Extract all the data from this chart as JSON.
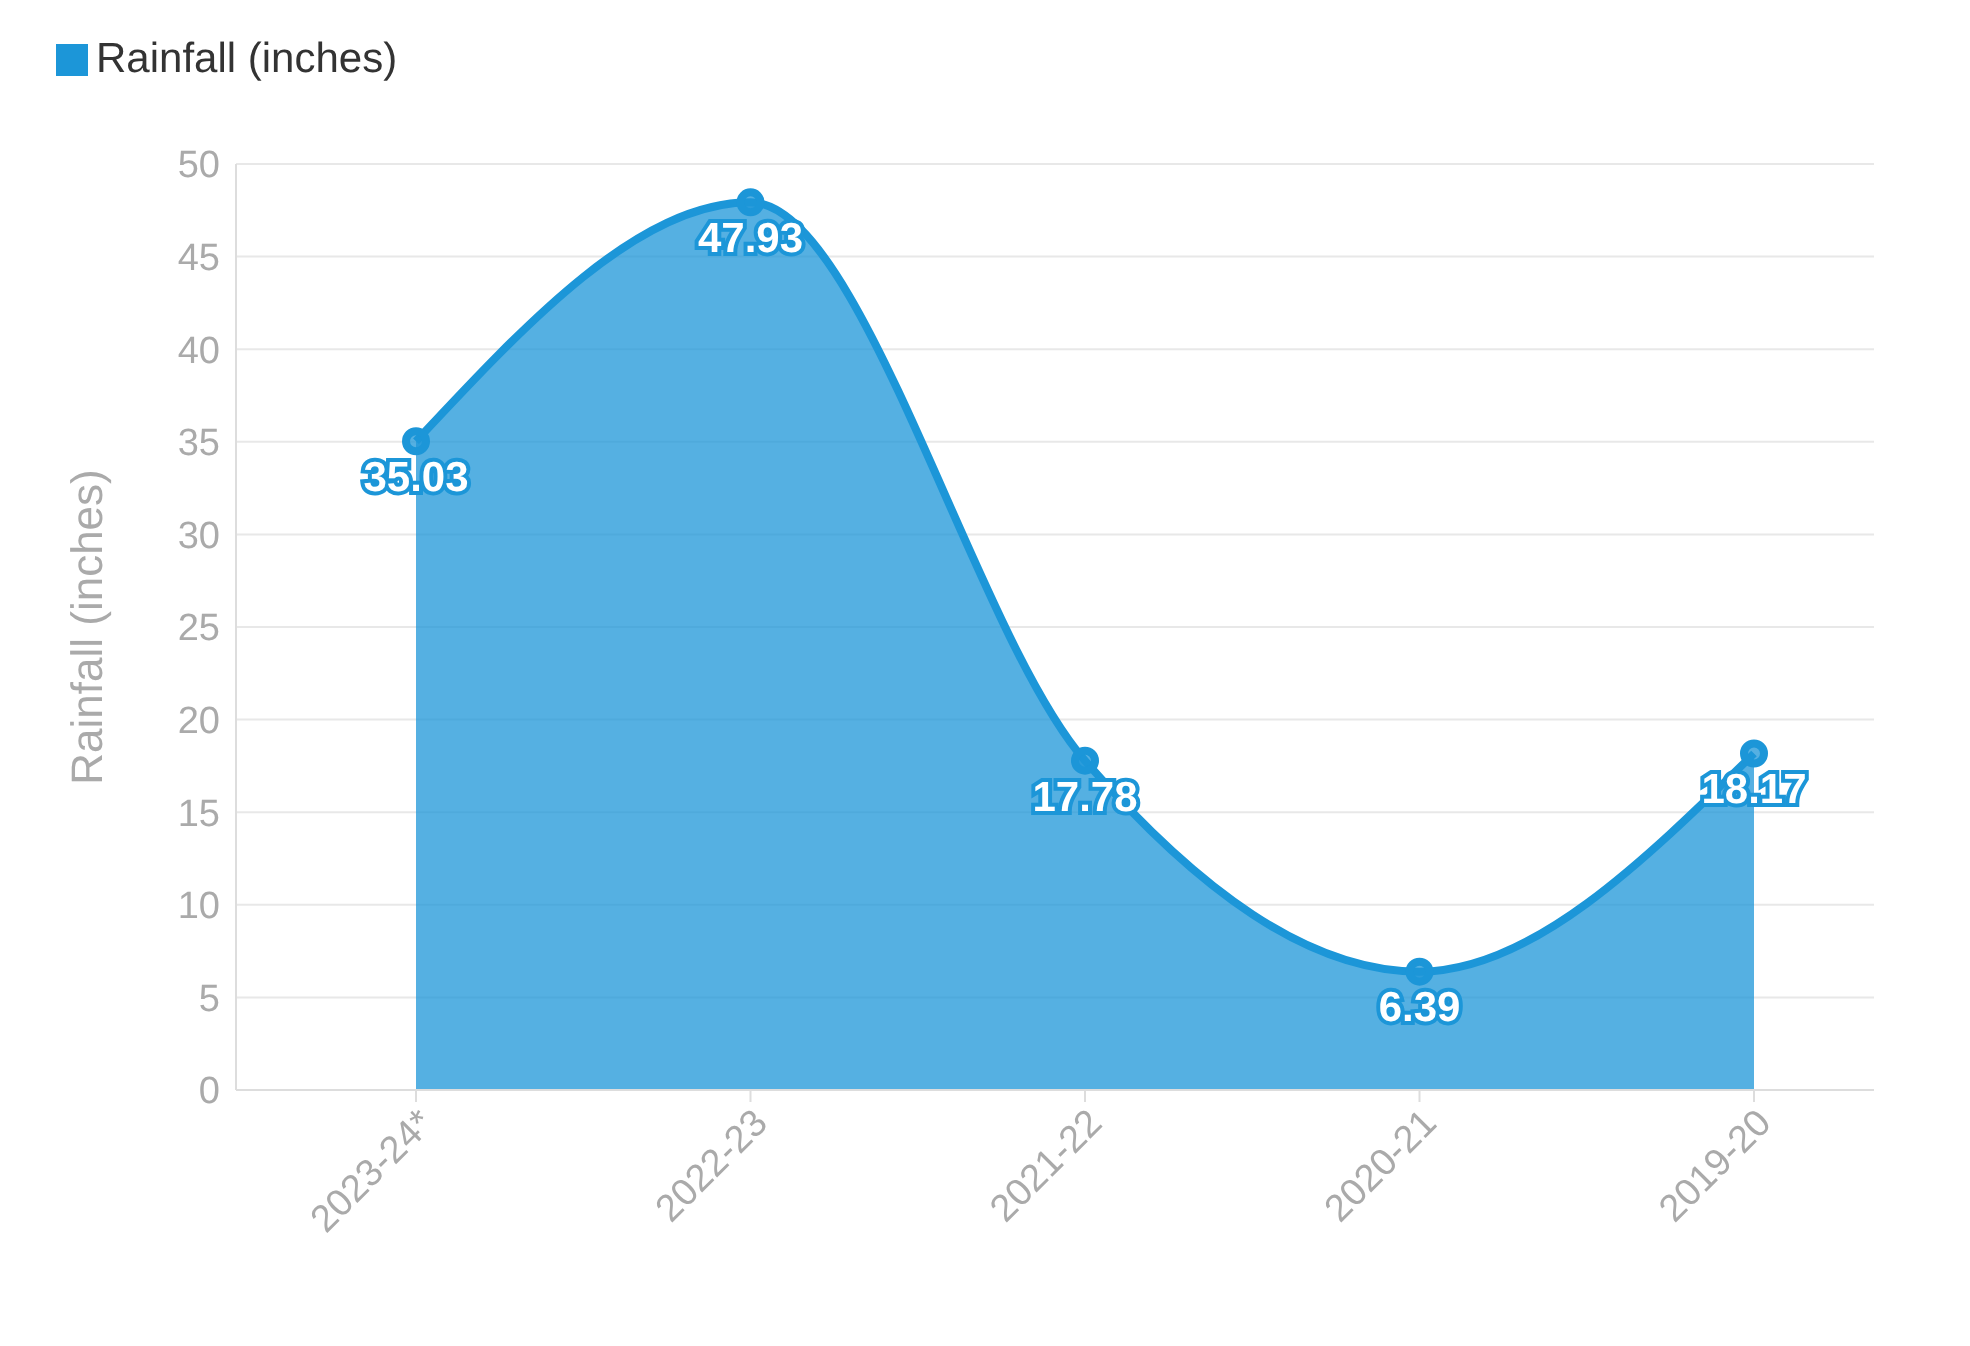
{
  "chart_data": {
    "type": "area",
    "ylabel": "Rainfall (inches)",
    "categories": [
      "2023-24*",
      "2022-23",
      "2021-22",
      "2020-21",
      "2019-20"
    ],
    "series": [
      {
        "name": "Rainfall (inches)",
        "color": "#1c96d8",
        "values": [
          35.03,
          47.93,
          17.78,
          6.39,
          18.17
        ]
      }
    ],
    "ylim": [
      0,
      50
    ],
    "yticks": [
      0,
      5,
      10,
      15,
      20,
      25,
      30,
      35,
      40,
      45,
      50
    ],
    "grid": "y",
    "legend": "top left",
    "marker": "circle",
    "data_labels": true
  }
}
